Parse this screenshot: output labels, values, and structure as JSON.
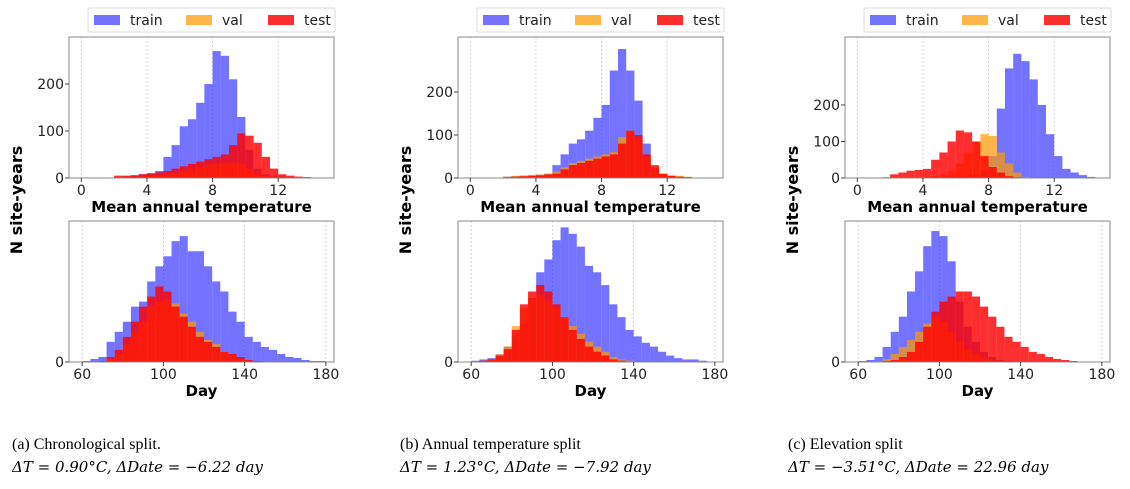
{
  "legend": {
    "train": "train",
    "val": "val",
    "test": "test"
  },
  "colors": {
    "train": "#0000ff",
    "val": "#ff9900",
    "test": "#ff0000"
  },
  "ylabel": "N site-years",
  "chart_data": [
    {
      "type": "histogram",
      "panel": "a",
      "caption": "(a) Chronological split.",
      "metrics": "ΔT = 0.90°C, ΔDate = −6.22 day",
      "legend_position": "top",
      "grid": "vertical dotted",
      "temperature": {
        "xlabel": "Mean annual temperature",
        "xticks": [
          0,
          4,
          8,
          12
        ],
        "yticks": [
          0,
          100,
          200
        ],
        "xlim": [
          -0.75,
          15.4
        ],
        "ylim": [
          0,
          300
        ],
        "bin_start": 0,
        "bin_width": 0.5,
        "series": [
          {
            "name": "train",
            "values": [
              0,
              0,
              0,
              0,
              2,
              3,
              5,
              8,
              10,
              15,
              45,
              70,
              110,
              125,
              160,
              200,
              270,
              260,
              210,
              130,
              60,
              20,
              8,
              4,
              3,
              2,
              0,
              0,
              0
            ]
          },
          {
            "name": "val",
            "values": [
              0,
              0,
              0,
              0,
              2,
              2,
              3,
              4,
              5,
              6,
              8,
              10,
              15,
              20,
              25,
              28,
              30,
              32,
              33,
              30,
              20,
              10,
              5,
              2,
              1,
              1,
              0,
              0,
              0
            ]
          },
          {
            "name": "test",
            "values": [
              0,
              0,
              0,
              0,
              5,
              5,
              6,
              8,
              10,
              12,
              15,
              20,
              25,
              30,
              35,
              40,
              45,
              50,
              70,
              95,
              90,
              75,
              45,
              20,
              8,
              5,
              3,
              2,
              0
            ]
          }
        ]
      },
      "day": {
        "xlabel": "Day",
        "xticks": [
          60,
          100,
          140,
          180
        ],
        "yticks": [
          0
        ],
        "xlim": [
          53.5,
          184
        ],
        "ylim": [
          0,
          140
        ],
        "bin_start": 60,
        "bin_width": 4,
        "series": [
          {
            "name": "train",
            "values": [
              1,
              3,
              5,
              20,
              30,
              40,
              55,
              60,
              80,
              95,
              105,
              120,
              125,
              110,
              110,
              95,
              80,
              70,
              50,
              40,
              25,
              20,
              15,
              12,
              8,
              5,
              4,
              2,
              1,
              1
            ]
          },
          {
            "name": "val",
            "values": [
              0,
              0,
              1,
              3,
              8,
              18,
              30,
              40,
              55,
              60,
              62,
              58,
              48,
              40,
              30,
              22,
              18,
              10,
              6,
              3,
              1,
              0,
              0,
              0,
              0,
              0,
              0,
              0,
              0,
              0
            ]
          },
          {
            "name": "test",
            "values": [
              0,
              0,
              1,
              5,
              12,
              25,
              40,
              55,
              65,
              75,
              70,
              55,
              45,
              35,
              25,
              20,
              15,
              10,
              8,
              5,
              2,
              1,
              0,
              0,
              0,
              0,
              0,
              0,
              0,
              0
            ]
          }
        ]
      }
    },
    {
      "type": "histogram",
      "panel": "b",
      "caption": "(b) Annual temperature split",
      "metrics": "ΔT = 1.23°C, ΔDate = −7.92 day",
      "legend_position": "top",
      "grid": "vertical dotted",
      "temperature": {
        "xlabel": "Mean annual temperature",
        "xticks": [
          0,
          4,
          8,
          12
        ],
        "yticks": [
          0,
          100,
          200
        ],
        "xlim": [
          -0.75,
          15.4
        ],
        "ylim": [
          0,
          328
        ],
        "bin_start": 0,
        "bin_width": 0.5,
        "series": [
          {
            "name": "train",
            "values": [
              0,
              0,
              0,
              0,
              3,
              4,
              5,
              6,
              8,
              10,
              30,
              55,
              80,
              90,
              110,
              140,
              170,
              250,
              300,
              250,
              180,
              80,
              20,
              8,
              5,
              3,
              2,
              0,
              0
            ]
          },
          {
            "name": "val",
            "values": [
              0,
              0,
              0,
              0,
              3,
              5,
              6,
              7,
              8,
              10,
              15,
              25,
              35,
              40,
              45,
              50,
              55,
              60,
              95,
              110,
              90,
              50,
              25,
              10,
              6,
              5,
              3,
              1,
              0
            ]
          },
          {
            "name": "test",
            "values": [
              0,
              0,
              0,
              0,
              2,
              3,
              4,
              5,
              6,
              8,
              10,
              20,
              30,
              35,
              40,
              45,
              50,
              55,
              80,
              110,
              100,
              55,
              30,
              10,
              5,
              3,
              2,
              1,
              0
            ]
          }
        ]
      },
      "day": {
        "xlabel": "Day",
        "xticks": [
          60,
          100,
          140,
          180
        ],
        "yticks": [
          0
        ],
        "xlim": [
          53.5,
          184
        ],
        "ylim": [
          0,
          110
        ],
        "bin_start": 60,
        "bin_width": 4,
        "series": [
          {
            "name": "train",
            "values": [
              1,
              2,
              3,
              6,
              12,
              20,
              30,
              50,
              70,
              80,
              95,
              105,
              100,
              90,
              75,
              70,
              60,
              45,
              35,
              25,
              20,
              15,
              12,
              8,
              5,
              3,
              2,
              2,
              1,
              0
            ]
          },
          {
            "name": "val",
            "values": [
              0,
              1,
              2,
              6,
              12,
              28,
              42,
              50,
              52,
              48,
              42,
              35,
              28,
              22,
              16,
              12,
              8,
              4,
              2,
              1,
              0,
              0,
              0,
              0,
              0,
              0,
              0,
              0,
              0,
              0
            ]
          },
          {
            "name": "test",
            "values": [
              0,
              1,
              2,
              5,
              10,
              25,
              45,
              55,
              60,
              55,
              45,
              35,
              25,
              18,
              12,
              8,
              5,
              2,
              1,
              0,
              0,
              0,
              0,
              0,
              0,
              0,
              0,
              0,
              0,
              0
            ]
          }
        ]
      }
    },
    {
      "type": "histogram",
      "panel": "c",
      "caption": "(c) Elevation split",
      "metrics": "ΔT = −3.51°C, ΔDate = 22.96 day",
      "legend_position": "top",
      "grid": "vertical dotted",
      "temperature": {
        "xlabel": "Mean annual temperature",
        "xticks": [
          0,
          4,
          8,
          12
        ],
        "yticks": [
          0,
          100,
          200
        ],
        "xlim": [
          -0.75,
          15.4
        ],
        "ylim": [
          0,
          386
        ],
        "bin_start": 0,
        "bin_width": 0.5,
        "series": [
          {
            "name": "train",
            "values": [
              0,
              0,
              0,
              0,
              0,
              0,
              0,
              0,
              0,
              0,
              0,
              0,
              3,
              5,
              10,
              20,
              60,
              190,
              300,
              340,
              320,
              270,
              200,
              120,
              60,
              25,
              15,
              8,
              3
            ]
          },
          {
            "name": "val",
            "values": [
              0,
              0,
              0,
              0,
              0,
              0,
              0,
              0,
              2,
              5,
              10,
              20,
              40,
              70,
              100,
              120,
              115,
              70,
              40,
              15,
              3,
              0,
              0,
              0,
              0,
              0,
              0,
              0,
              0
            ]
          },
          {
            "name": "test",
            "values": [
              0,
              0,
              0,
              2,
              10,
              15,
              20,
              22,
              25,
              50,
              70,
              100,
              130,
              125,
              100,
              60,
              30,
              15,
              5,
              2,
              0,
              0,
              0,
              0,
              0,
              0,
              0,
              0,
              0
            ]
          }
        ]
      },
      "day": {
        "xlabel": "Day",
        "xticks": [
          60,
          100,
          140,
          180
        ],
        "yticks": [
          0
        ],
        "xlim": [
          53.5,
          184
        ],
        "ylim": [
          0,
          140
        ],
        "bin_start": 60,
        "bin_width": 4,
        "series": [
          {
            "name": "train",
            "values": [
              1,
              2,
              5,
              15,
              30,
              45,
              70,
              90,
              115,
              130,
              125,
              100,
              60,
              35,
              20,
              10,
              5,
              2,
              1,
              0,
              0,
              0,
              0,
              0,
              0,
              0,
              0,
              0,
              0,
              0
            ]
          },
          {
            "name": "val",
            "values": [
              0,
              0,
              1,
              3,
              8,
              15,
              22,
              30,
              38,
              45,
              40,
              30,
              20,
              12,
              8,
              5,
              2,
              1,
              0,
              0,
              0,
              0,
              0,
              0,
              0,
              0,
              0,
              0,
              0,
              0
            ]
          },
          {
            "name": "test",
            "values": [
              0,
              0,
              0,
              1,
              2,
              5,
              10,
              20,
              35,
              50,
              60,
              65,
              70,
              70,
              65,
              55,
              45,
              35,
              25,
              20,
              15,
              10,
              8,
              5,
              3,
              2,
              1,
              0,
              0,
              0
            ]
          }
        ]
      }
    }
  ]
}
